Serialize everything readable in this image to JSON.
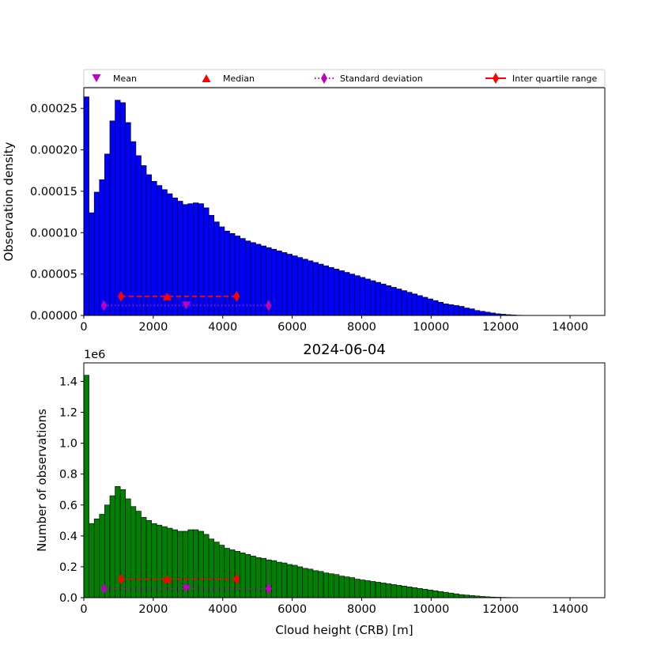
{
  "chart_data": [
    {
      "type": "bar",
      "ylabel": "Observation density",
      "xlim": [
        0,
        15000
      ],
      "ylim": [
        0,
        0.000275
      ],
      "xticks": [
        "0",
        "2000",
        "4000",
        "6000",
        "8000",
        "10000",
        "12000",
        "14000"
      ],
      "yticks": [
        "0.00000",
        "0.00005",
        "0.00010",
        "0.00015",
        "0.00020",
        "0.00025"
      ],
      "bin_width": 150,
      "color": "#0000ff",
      "values": [
        0.000264,
        0.000124,
        0.000149,
        0.000164,
        0.000195,
        0.000235,
        0.00026,
        0.000257,
        0.000233,
        0.00021,
        0.000193,
        0.000181,
        0.00017,
        0.000162,
        0.000157,
        0.000152,
        0.000147,
        0.000142,
        0.000138,
        0.000134,
        0.000135,
        0.000136,
        0.000135,
        0.00013,
        0.000121,
        0.000113,
        0.000107,
        0.000102,
        9.9e-05,
        9.6e-05,
        9.3e-05,
        9e-05,
        8.8e-05,
        8.6e-05,
        8.4e-05,
        8.2e-05,
        8e-05,
        7.8e-05,
        7.6e-05,
        7.4e-05,
        7.2e-05,
        7e-05,
        6.8e-05,
        6.6e-05,
        6.4e-05,
        6.2e-05,
        6e-05,
        5.8e-05,
        5.6e-05,
        5.4e-05,
        5.2e-05,
        5e-05,
        4.8e-05,
        4.6e-05,
        4.4e-05,
        4.2e-05,
        4e-05,
        3.8e-05,
        3.6e-05,
        3.4e-05,
        3.2e-05,
        3e-05,
        2.8e-05,
        2.6e-05,
        2.4e-05,
        2.2e-05,
        2e-05,
        1.8e-05,
        1.6e-05,
        1.4e-05,
        1.3e-05,
        1.2e-05,
        1.1e-05,
        9e-06,
        8e-06,
        6e-06,
        5e-06,
        4e-06,
        3e-06,
        2e-06,
        1.5e-06,
        1e-06,
        6e-07,
        3e-07,
        1e-07
      ],
      "markers": {
        "mean": {
          "x": 2950,
          "y": 1.2e-05
        },
        "median": {
          "x": 2400,
          "y": 2.3e-05
        },
        "std": {
          "x": [
            580,
            5320
          ],
          "y": 1.2e-05
        },
        "iqr": {
          "x": [
            1070,
            4400
          ],
          "y": 2.3e-05
        }
      },
      "legend": {
        "position": "top",
        "entries": [
          "Mean",
          "Median",
          "Standard deviation",
          "Inter quartile range"
        ]
      }
    },
    {
      "type": "bar",
      "title": "2024-06-04",
      "xlabel": "Cloud height (CRB) [m]",
      "ylabel": "Number of observations",
      "y_offset_label": "1e6",
      "xlim": [
        0,
        15000
      ],
      "ylim": [
        0,
        1.52
      ],
      "xticks": [
        "0",
        "2000",
        "4000",
        "6000",
        "8000",
        "10000",
        "12000",
        "14000"
      ],
      "yticks": [
        "0.0",
        "0.2",
        "0.4",
        "0.6",
        "0.8",
        "1.0",
        "1.2",
        "1.4"
      ],
      "bin_width": 150,
      "color": "#008000",
      "values": [
        1.44,
        0.48,
        0.51,
        0.54,
        0.6,
        0.66,
        0.72,
        0.7,
        0.64,
        0.59,
        0.56,
        0.52,
        0.5,
        0.48,
        0.47,
        0.46,
        0.45,
        0.44,
        0.43,
        0.43,
        0.44,
        0.44,
        0.43,
        0.41,
        0.38,
        0.36,
        0.34,
        0.32,
        0.31,
        0.3,
        0.29,
        0.28,
        0.27,
        0.26,
        0.255,
        0.245,
        0.24,
        0.23,
        0.225,
        0.215,
        0.21,
        0.2,
        0.19,
        0.185,
        0.175,
        0.17,
        0.16,
        0.155,
        0.15,
        0.14,
        0.135,
        0.13,
        0.12,
        0.115,
        0.11,
        0.105,
        0.1,
        0.095,
        0.09,
        0.085,
        0.08,
        0.075,
        0.07,
        0.065,
        0.06,
        0.055,
        0.05,
        0.045,
        0.04,
        0.035,
        0.03,
        0.025,
        0.02,
        0.017,
        0.014,
        0.011,
        0.008,
        0.006,
        0.004,
        0.003,
        0.002,
        0.0015,
        0.001,
        0.0006,
        0.0003
      ],
      "markers": {
        "mean": {
          "x": 2950,
          "y": 0.058
        },
        "median": {
          "x": 2400,
          "y": 0.12
        },
        "std": {
          "x": [
            580,
            5320
          ],
          "y": 0.058
        },
        "iqr": {
          "x": [
            1070,
            4400
          ],
          "y": 0.12
        }
      }
    }
  ]
}
